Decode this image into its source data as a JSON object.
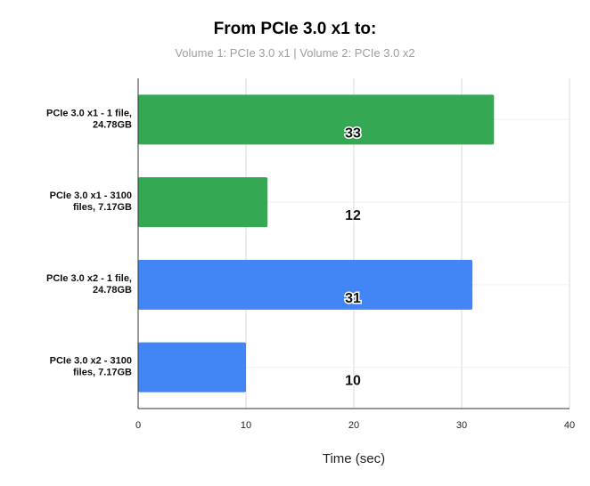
{
  "chart_data": {
    "type": "bar",
    "orientation": "horizontal",
    "title": "From PCIe 3.0 x1 to:",
    "subtitle": "Volume 1: PCIe 3.0 x1 | Volume 2: PCIe 3.0 x2",
    "xlabel": "Time (sec)",
    "ylabel": "",
    "xlim": [
      0,
      40
    ],
    "xticks": [
      0,
      10,
      20,
      30,
      40
    ],
    "grid": true,
    "categories": [
      [
        "PCIe 3.0 x1 - 1 file,",
        "24.78GB"
      ],
      [
        "PCIe 3.0 x1 - 3100",
        "files, 7.17GB"
      ],
      [
        "PCIe 3.0 x2 - 1 file,",
        "24.78GB"
      ],
      [
        "PCIe 3.0 x2 - 3100",
        "files, 7.17GB"
      ]
    ],
    "values": [
      33,
      12,
      31,
      10
    ],
    "colors": [
      "#34a853",
      "#34a853",
      "#4285f4",
      "#4285f4"
    ],
    "data_labels": [
      "33",
      "12",
      "31",
      "10"
    ]
  }
}
